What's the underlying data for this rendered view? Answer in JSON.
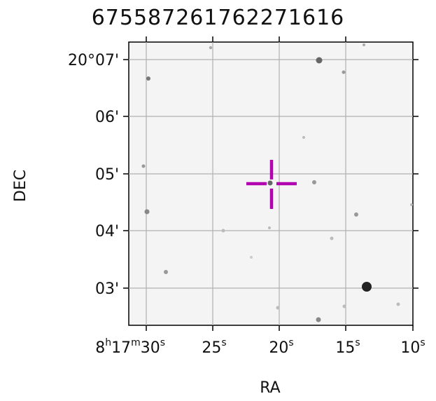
{
  "title": "67558726176227161​6",
  "axes": {
    "xlabel": "RA",
    "ylabel": "DEC",
    "ra_ticks": [
      {
        "label": "8h17m30s",
        "text_main": "8",
        "h": "h",
        "t1": "17",
        "m": "m",
        "t2": "30",
        "s": "s"
      },
      {
        "label": "25s"
      },
      {
        "label": "20s"
      },
      {
        "label": "15s"
      },
      {
        "label": "10s"
      }
    ],
    "dec_ticks": [
      "20°07'",
      "06'",
      "05'",
      "04'",
      "03'"
    ]
  },
  "colors": {
    "marker": "#b000b0",
    "grid": "#b0b0b0",
    "background": "#f4f4f4"
  },
  "marker": {
    "type": "crosshair"
  },
  "stars": "field-stars"
}
